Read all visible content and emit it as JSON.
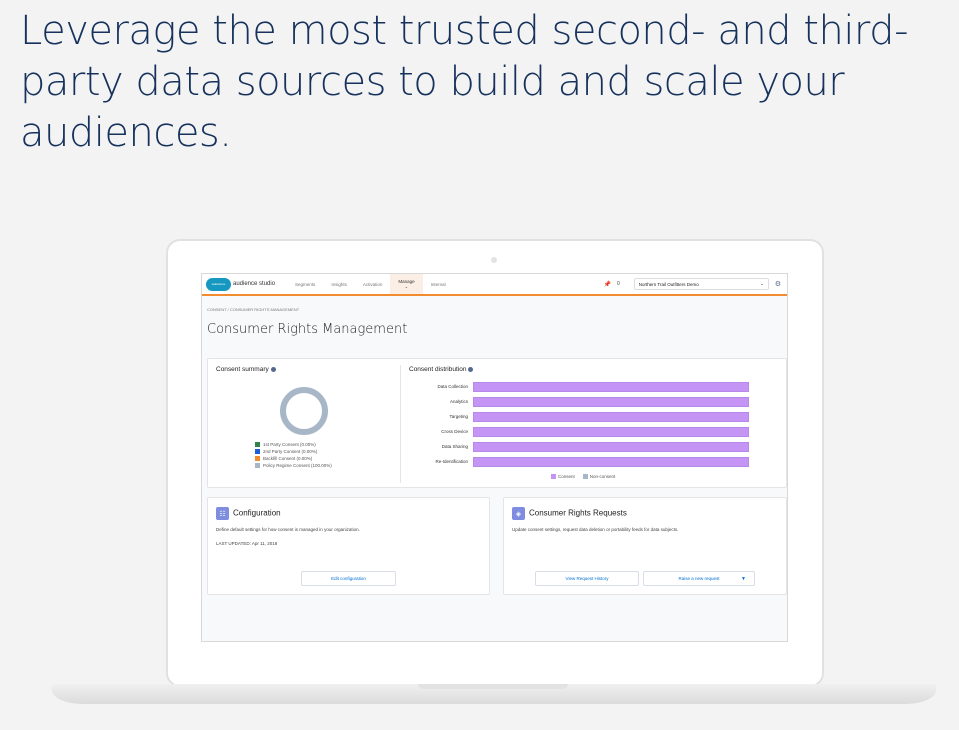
{
  "headline": "Leverage the most trusted second- and third-party data sources to build and scale your audiences.",
  "app": {
    "logo_text": "salesforce",
    "brand": "audience studio",
    "nav": [
      "Segments",
      "Insights",
      "Activation",
      "Manage",
      "Internal"
    ],
    "active_nav": "Manage",
    "notifications_count": "0",
    "org_selector": "Northern Trail Outfitters Demo",
    "breadcrumb": "CONSENT  /  CONSUMER RIGHTS MANAGEMENT",
    "page_title": "Consumer Rights Management"
  },
  "consent_summary": {
    "title": "Consent summary",
    "donut_color": "#a8b7c7",
    "legend": [
      {
        "label": "1st Party Consent (0.00%)",
        "color": "#2e844a"
      },
      {
        "label": "2nd Party Consent (0.00%)",
        "color": "#1b5fd6"
      },
      {
        "label": "Backfill Consent (0.00%)",
        "color": "#f38b2f"
      },
      {
        "label": "Policy Regime Consent (100.00%)",
        "color": "#a8b7c7"
      }
    ]
  },
  "chart_data": {
    "type": "bar",
    "title": "Consent distribution",
    "categories": [
      "Data Collection",
      "Analytics",
      "Targeting",
      "Cross Device",
      "Data Sharing",
      "Re-Identification"
    ],
    "series": [
      {
        "name": "Consent",
        "color": "#c495f4",
        "values": [
          100,
          100,
          100,
          100,
          100,
          100
        ]
      },
      {
        "name": "Non-consent",
        "color": "#a8b7c7",
        "values": [
          0,
          0,
          0,
          0,
          0,
          0
        ]
      }
    ],
    "legend": "bottom"
  },
  "configuration": {
    "title": "Configuration",
    "description": "Define default settings for how consent is managed in your organization.",
    "last_updated": "LAST UPDATED: Apr 11, 2018",
    "button": "Edit configuration"
  },
  "requests": {
    "title": "Consumer Rights Requests",
    "description": "Update consent settings, request data deletion or portability feeds for data subjects.",
    "history_button": "View Request History",
    "new_button": "Raise a new request"
  }
}
